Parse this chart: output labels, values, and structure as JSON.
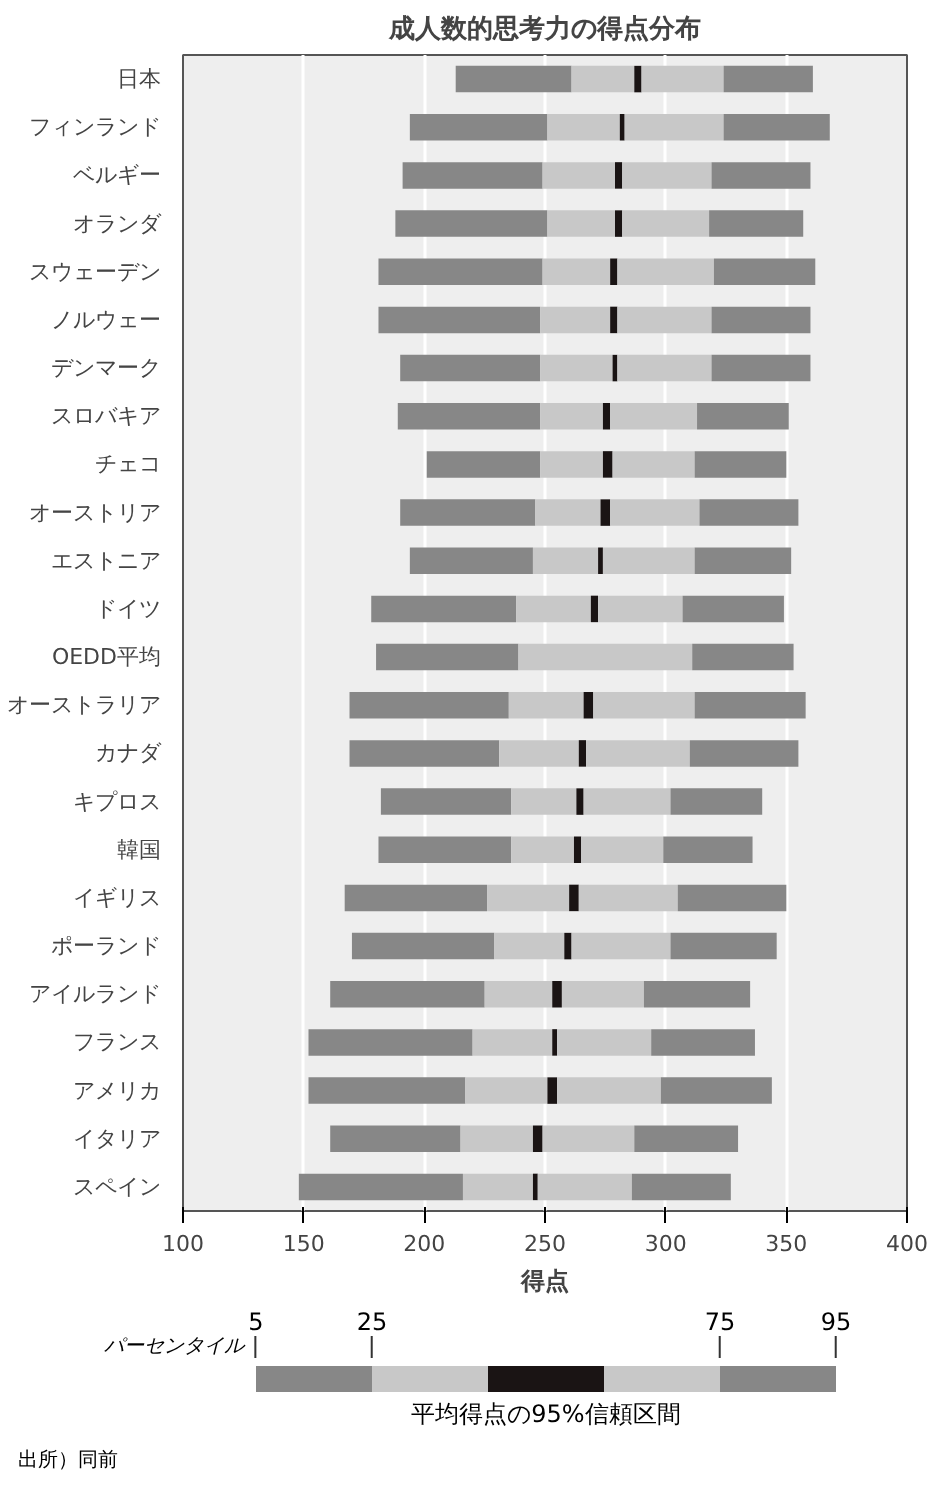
{
  "chart_data": {
    "type": "bar",
    "orientation": "horizontal",
    "title": "成人数的思考力の得点分布",
    "xlabel": "得点",
    "categories": [
      "日本",
      "フィンランド",
      "ベルギー",
      "オランダ",
      "スウェーデン",
      "ノルウェー",
      "デンマーク",
      "スロバキア",
      "チェコ",
      "オーストリア",
      "エストニア",
      "ドイツ",
      "OEDD平均",
      "オーストラリア",
      "カナダ",
      "キプロス",
      "韓国",
      "イギリス",
      "ポーランド",
      "アイルランド",
      "フランス",
      "アメリカ",
      "イタリア",
      "スペイン"
    ],
    "series": [
      {
        "color": "#878787",
        "base": [
          213,
          194,
          191,
          188,
          181,
          181,
          190,
          189,
          201,
          190,
          194,
          178,
          180,
          169,
          169,
          182,
          181,
          167,
          170,
          161,
          152,
          152,
          161,
          148
        ],
        "values": [
          48,
          57,
          58,
          63,
          68,
          67,
          58,
          59,
          47,
          56,
          51,
          60,
          59,
          66,
          62,
          54,
          55,
          59,
          59,
          64,
          68,
          65,
          54,
          68
        ]
      },
      {
        "color": "#c8c8c8",
        "base": [
          261,
          251,
          249,
          251,
          249,
          248,
          248,
          248,
          248,
          246,
          245,
          238,
          239,
          235,
          231,
          236,
          236,
          226,
          229,
          225,
          220,
          217,
          215,
          216
        ],
        "values": [
          26,
          30,
          30,
          28,
          28,
          29,
          30,
          26,
          26,
          27,
          27,
          31,
          72,
          31,
          33,
          27,
          26,
          34,
          29,
          28,
          33,
          34,
          30,
          29
        ]
      },
      {
        "color": "#1a1414",
        "base": [
          287,
          281,
          279,
          279,
          277,
          277,
          278,
          274,
          274,
          273,
          272,
          269,
          null,
          266,
          264,
          263,
          262,
          260,
          258,
          253,
          253,
          251,
          245,
          245
        ],
        "values": [
          3,
          2,
          3,
          3,
          3,
          3,
          2,
          3,
          4,
          4,
          2,
          3,
          null,
          4,
          3,
          3,
          3,
          4,
          3,
          4,
          2,
          4,
          4,
          2
        ]
      },
      {
        "color": "#c8c8c8",
        "base": [
          290,
          283,
          282,
          282,
          280,
          280,
          280,
          277,
          278,
          277,
          274,
          272,
          null,
          270,
          267,
          266,
          265,
          264,
          261,
          257,
          255,
          255,
          249,
          247
        ],
        "values": [
          34,
          41,
          37,
          36,
          40,
          39,
          39,
          36,
          34,
          37,
          38,
          35,
          null,
          42,
          43,
          36,
          34,
          41,
          41,
          34,
          39,
          43,
          38,
          39
        ]
      },
      {
        "color": "#878787",
        "base": [
          324,
          324,
          319,
          318,
          320,
          319,
          319,
          313,
          312,
          314,
          312,
          307,
          311,
          312,
          310,
          302,
          299,
          305,
          302,
          291,
          294,
          298,
          287,
          286
        ],
        "values": [
          37,
          44,
          41,
          39,
          42,
          41,
          41,
          38,
          38,
          41,
          40,
          42,
          42,
          46,
          45,
          38,
          37,
          45,
          44,
          44,
          43,
          46,
          43,
          41
        ]
      }
    ],
    "xlim": [
      100,
      400
    ],
    "xticks": [
      100,
      150,
      200,
      250,
      300,
      350,
      400
    ],
    "grid": "x",
    "annotations": [
      "5",
      "25",
      "75",
      "95",
      "パーセンタイル",
      "平均得点の95%信頼区間",
      "出所）同前"
    ]
  }
}
